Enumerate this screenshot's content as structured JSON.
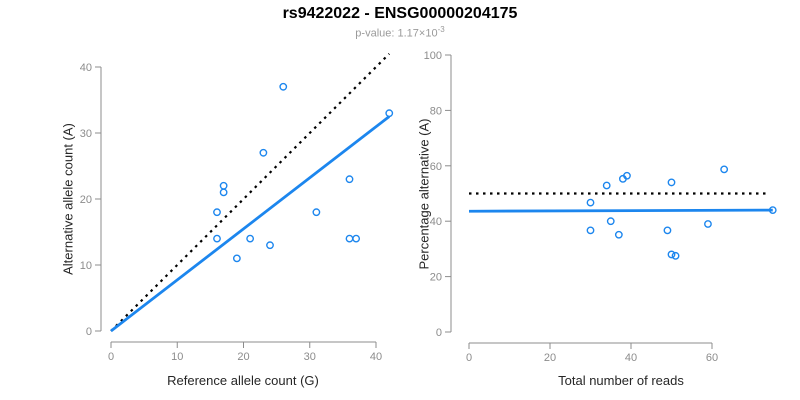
{
  "header": {
    "title": "rs9422022 - ENSG00000204175",
    "pvalue_prefix": "p-value: 1.17×10",
    "pvalue_exponent": "-3"
  },
  "colors": {
    "accent_blue": "#1c86ee",
    "dotted_black": "#000000",
    "axis_gray": "#8c8c8c",
    "tick_label_gray": "#8c8c8c",
    "axis_title_color": "#262626",
    "subtitle_gray": "#9a9a9a",
    "background": "#ffffff"
  },
  "chart_data": [
    {
      "type": "scatter",
      "title": "rs9422022 - ENSG00000204175",
      "xlabel": "Reference allele count (G)",
      "ylabel": "Alternative allele count (A)",
      "xlim": [
        0,
        42
      ],
      "ylim": [
        0,
        42
      ],
      "xticks": [
        0,
        10,
        20,
        30,
        40
      ],
      "yticks": [
        0,
        10,
        20,
        30,
        40
      ],
      "grid": false,
      "points": [
        [
          16,
          18
        ],
        [
          16,
          14
        ],
        [
          17,
          21
        ],
        [
          17,
          22
        ],
        [
          19,
          11
        ],
        [
          21,
          14
        ],
        [
          23,
          27
        ],
        [
          24,
          13
        ],
        [
          26,
          37
        ],
        [
          31,
          18
        ],
        [
          36,
          14
        ],
        [
          36,
          23
        ],
        [
          37,
          14
        ],
        [
          42,
          33
        ]
      ],
      "lines": [
        {
          "name": "identity-line",
          "style": "dotted",
          "color": "#000000",
          "from": [
            0,
            0
          ],
          "to": [
            42,
            42
          ]
        },
        {
          "name": "fit-line",
          "style": "solid",
          "color": "#1c86ee",
          "from": [
            0,
            0
          ],
          "to": [
            42,
            32.5
          ]
        }
      ]
    },
    {
      "type": "scatter",
      "xlabel": "Total number of reads",
      "ylabel": "Percentage alternative (A)",
      "xlim": [
        0,
        75
      ],
      "ylim": [
        0,
        100
      ],
      "xticks": [
        0,
        20,
        40,
        60
      ],
      "yticks": [
        0,
        20,
        40,
        60,
        80,
        100
      ],
      "grid": false,
      "points": [
        [
          34,
          52.9
        ],
        [
          30,
          46.7
        ],
        [
          38,
          55.3
        ],
        [
          39,
          56.4
        ],
        [
          30,
          36.7
        ],
        [
          35,
          40
        ],
        [
          50,
          54
        ],
        [
          37,
          35.1
        ],
        [
          63,
          58.7
        ],
        [
          49,
          36.7
        ],
        [
          50,
          28
        ],
        [
          59,
          39
        ],
        [
          51,
          27.5
        ],
        [
          75,
          44
        ]
      ],
      "lines": [
        {
          "name": "fifty-percent-line",
          "style": "dotted",
          "color": "#000000",
          "from": [
            0,
            50
          ],
          "to": [
            74,
            50
          ]
        },
        {
          "name": "mean-percentage-line",
          "style": "solid",
          "color": "#1c86ee",
          "from": [
            0,
            43.6
          ],
          "to": [
            75,
            44
          ]
        }
      ]
    }
  ]
}
